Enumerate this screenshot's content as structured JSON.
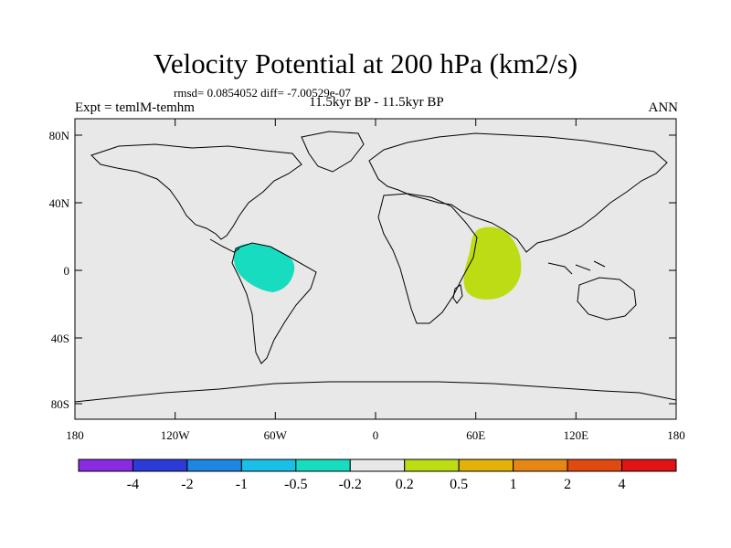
{
  "title": "Velocity Potential at 200 hPa (km2/s)",
  "stats": "rmsd= 0.0854052  diff= -7.00529e-07",
  "subtitle": "11.5kyr BP - 11.5kyr BP",
  "left_label": "Expt = temlM-temhm",
  "right_label": "ANN",
  "lat_ticks": [
    "80N",
    "40N",
    "0",
    "40S",
    "80S"
  ],
  "lon_ticks": [
    "180",
    "120W",
    "60W",
    "0",
    "60E",
    "120E",
    "180"
  ],
  "colorbar": {
    "colors": [
      "#8a2be2",
      "#2c3ad8",
      "#1e86e0",
      "#19bfe6",
      "#17dcc0",
      "#e8e8e8",
      "#bedc14",
      "#e2b20a",
      "#e68614",
      "#e04a10",
      "#e01414"
    ],
    "labels": [
      "-4",
      "-2",
      "-1",
      "-0.5",
      "-0.2",
      "0.2",
      "0.5",
      "1",
      "2",
      "4"
    ]
  },
  "map": {
    "ocean_color": "#e8e8e8",
    "anomalies": [
      {
        "name": "amazon-negative-anomaly",
        "color": "#17dcc0"
      },
      {
        "name": "indian-ocean-positive-anomaly",
        "color": "#bedc14"
      }
    ]
  }
}
